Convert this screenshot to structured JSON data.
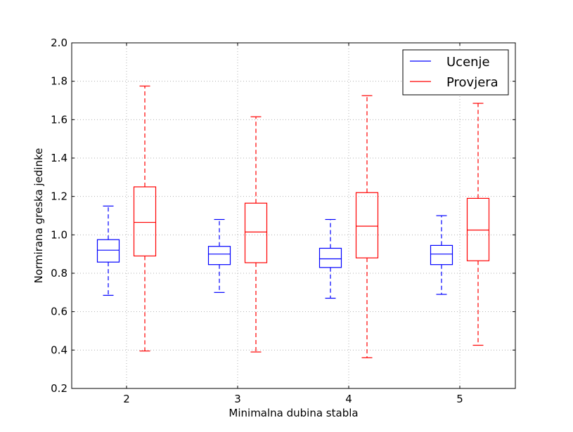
{
  "chart_data": {
    "type": "boxplot",
    "xlabel": "Minimalna dubina stabla",
    "ylabel": "Normirana greska jedinke",
    "ylim": [
      0.2,
      2.0
    ],
    "yticks": [
      "0.2",
      "0.4",
      "0.6",
      "0.8",
      "1.0",
      "1.2",
      "1.4",
      "1.6",
      "1.8",
      "2.0"
    ],
    "categories": [
      "2",
      "3",
      "4",
      "5"
    ],
    "grid": true,
    "legend_position": "top-right",
    "series": [
      {
        "name": "Ucenje",
        "color": "#0000ff",
        "boxes": [
          {
            "whislo": 0.685,
            "q1": 0.858,
            "med": 0.92,
            "q3": 0.975,
            "whishi": 1.15
          },
          {
            "whislo": 0.7,
            "q1": 0.845,
            "med": 0.9,
            "q3": 0.94,
            "whishi": 1.08
          },
          {
            "whislo": 0.67,
            "q1": 0.83,
            "med": 0.875,
            "q3": 0.93,
            "whishi": 1.08
          },
          {
            "whislo": 0.69,
            "q1": 0.845,
            "med": 0.9,
            "q3": 0.945,
            "whishi": 1.1
          }
        ]
      },
      {
        "name": "Provjera",
        "color": "#ff0000",
        "boxes": [
          {
            "whislo": 0.395,
            "q1": 0.89,
            "med": 1.065,
            "q3": 1.25,
            "whishi": 1.775
          },
          {
            "whislo": 0.39,
            "q1": 0.855,
            "med": 1.015,
            "q3": 1.165,
            "whishi": 1.615
          },
          {
            "whislo": 0.36,
            "q1": 0.88,
            "med": 1.045,
            "q3": 1.22,
            "whishi": 1.725
          },
          {
            "whislo": 0.425,
            "q1": 0.865,
            "med": 1.025,
            "q3": 1.19,
            "whishi": 1.685
          }
        ]
      }
    ]
  }
}
